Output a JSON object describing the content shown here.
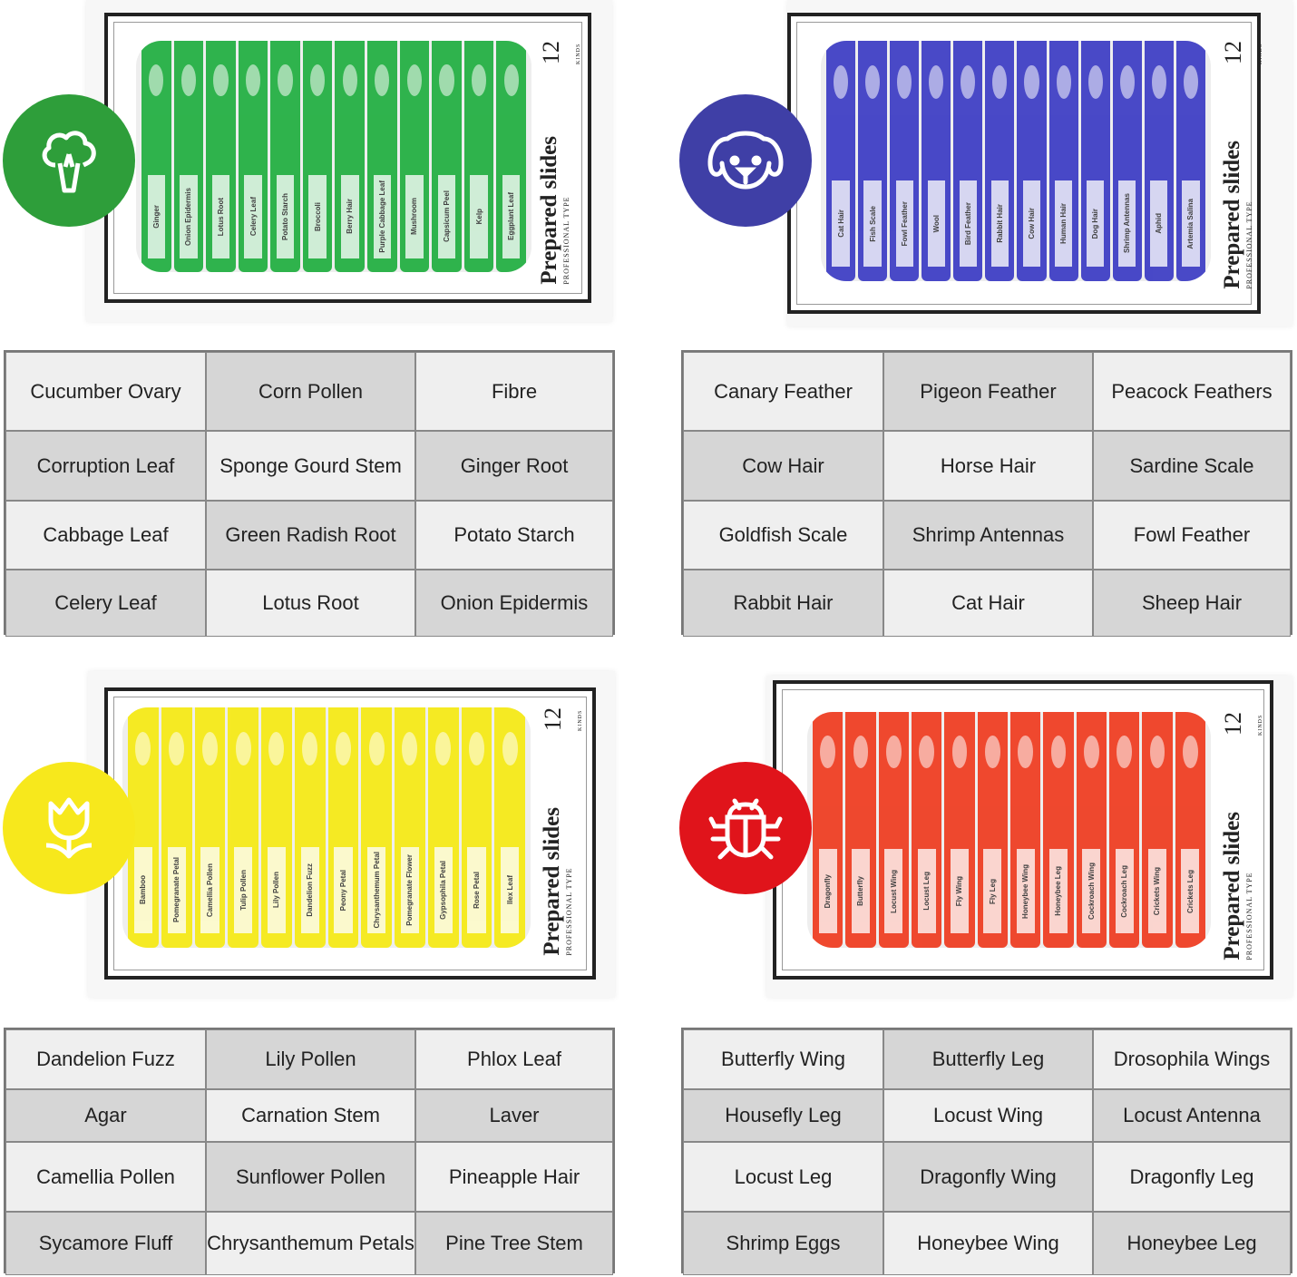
{
  "brand": {
    "title": "Prepared slides",
    "subtitle": "PROFESSIONAL TYPE",
    "count": "12",
    "count_unit": "KINDS"
  },
  "kits": [
    {
      "id": "plant",
      "icon": "broccoli-icon",
      "color": "#2e9e3a",
      "slide_color": "#1fae3f",
      "slides": [
        "Ginger",
        "Onion Epidermis",
        "Lotus Root",
        "Celery Leaf",
        "Potato Starch",
        "Broccoli",
        "Berry Hair",
        "Purple Cabbage Leaf",
        "Mushroom",
        "Capsicum Peel",
        "Kelp",
        "Eggplant Leaf"
      ],
      "table": [
        [
          "Cucumber Ovary",
          "Corn Pollen",
          "Fibre"
        ],
        [
          "Corruption Leaf",
          "Sponge Gourd Stem",
          "Ginger Root"
        ],
        [
          "Cabbage Leaf",
          "Green Radish Root",
          "Potato Starch"
        ],
        [
          "Celery Leaf",
          "Lotus Root",
          "Onion Epidermis"
        ]
      ]
    },
    {
      "id": "animal",
      "icon": "dog-icon",
      "color": "#3f3fa6",
      "slide_color": "#3b3bc4",
      "slides": [
        "Cat Hair",
        "Fish Scale",
        "Fowl Feather",
        "Wool",
        "Bird Feather",
        "Rabbit Hair",
        "Cow Hair",
        "Human Hair",
        "Dog Hair",
        "Shrimp Antennas",
        "Aphid",
        "Artemia Salina"
      ],
      "table": [
        [
          "Canary Feather",
          "Pigeon Feather",
          "Peacock Feathers"
        ],
        [
          "Cow Hair",
          "Horse Hair",
          "Sardine Scale"
        ],
        [
          "Goldfish Scale",
          "Shrimp Antennas",
          "Fowl Feather"
        ],
        [
          "Rabbit Hair",
          "Cat Hair",
          "Sheep Hair"
        ]
      ]
    },
    {
      "id": "flower",
      "icon": "tulip-icon",
      "color": "#f7e81c",
      "slide_color": "#f6ea12",
      "slides": [
        "Bamboo",
        "Pomegranate Petal",
        "Camellia Pollen",
        "Tulip Pollen",
        "Lily Pollen",
        "Dandelion Fuzz",
        "Peony Petal",
        "Chrysanthemum Petal",
        "Pomegranate Flower",
        "Gypsophila Petal",
        "Rose Petal",
        "Ilex Leaf"
      ],
      "table": [
        [
          "Dandelion Fuzz",
          "Lily Pollen",
          "Phlox Leaf"
        ],
        [
          "Agar",
          "Carnation Stem",
          "Laver"
        ],
        [
          "Camellia Pollen",
          "Sunflower Pollen",
          "Pineapple Hair"
        ],
        [
          "Sycamore Fluff",
          "Chrysanthemum Petals",
          "Pine Tree Stem"
        ]
      ]
    },
    {
      "id": "insect",
      "icon": "bug-icon",
      "color": "#e0141b",
      "slide_color": "#ef3a1e",
      "slides": [
        "Dragonfly",
        "Butterfly",
        "Locust Wing",
        "Locust Leg",
        "Fly Wing",
        "Fly Leg",
        "Honeybee Wing",
        "Honeybee Leg",
        "Cockroach Wing",
        "Cockroach Leg",
        "Crickets Wing",
        "Crickets Leg"
      ],
      "table": [
        [
          "Butterfly Wing",
          "Butterfly Leg",
          "Drosophila Wings"
        ],
        [
          "Housefly Leg",
          "Locust Wing",
          "Locust Antenna"
        ],
        [
          "Locust Leg",
          "Dragonfly Wing",
          "Dragonfly Leg"
        ],
        [
          "Shrimp Eggs",
          "Honeybee Wing",
          "Honeybee Leg"
        ]
      ]
    }
  ]
}
